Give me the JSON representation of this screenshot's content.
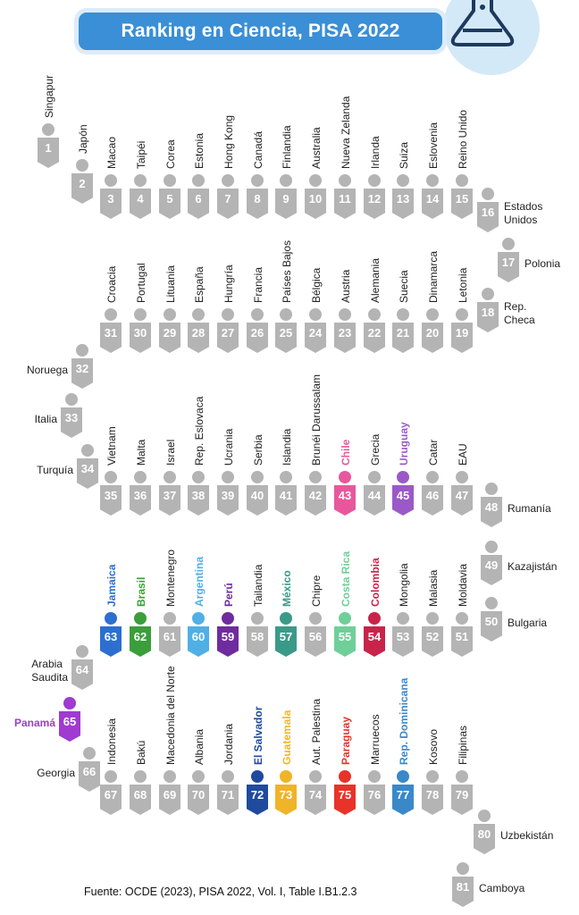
{
  "title": "Ranking en Ciencia, PISA 2022",
  "source": "Fuente: OCDE (2023), PISA 2022, Vol. I, Table I.B1.2.3",
  "colors": {
    "banner": "#3a8fd6",
    "default_figure": "#b4b4b4",
    "highlight": {
      "Chile": "#e8579c",
      "Uruguay": "#9b59c8",
      "Jamaica": "#2c6fd0",
      "Brasil": "#3a9e3a",
      "Argentina": "#4fb0e6",
      "Perú": "#6e2c9e",
      "México": "#3a9a88",
      "Costa Rica": "#6fcf98",
      "Colombia": "#c8244a",
      "Panamá": "#a03ad0",
      "El Salvador": "#1f4a9e",
      "Guatemala": "#f0b429",
      "Paraguay": "#e8332a",
      "Rep. Dominicana": "#3a88c8"
    }
  },
  "chart_data": {
    "type": "table",
    "title": "Ranking en Ciencia, PISA 2022",
    "ranking": [
      {
        "rank": 1,
        "country": "Singapur"
      },
      {
        "rank": 2,
        "country": "Japón"
      },
      {
        "rank": 3,
        "country": "Macao"
      },
      {
        "rank": 4,
        "country": "Taipéi"
      },
      {
        "rank": 5,
        "country": "Corea"
      },
      {
        "rank": 6,
        "country": "Estonia"
      },
      {
        "rank": 7,
        "country": "Hong Kong"
      },
      {
        "rank": 8,
        "country": "Canadá"
      },
      {
        "rank": 9,
        "country": "Finlandia"
      },
      {
        "rank": 10,
        "country": "Australia"
      },
      {
        "rank": 11,
        "country": "Nueva Zelanda"
      },
      {
        "rank": 12,
        "country": "Irlanda"
      },
      {
        "rank": 13,
        "country": "Suiza"
      },
      {
        "rank": 14,
        "country": "Eslovenia"
      },
      {
        "rank": 15,
        "country": "Reino Unido"
      },
      {
        "rank": 16,
        "country": "Estados Unidos"
      },
      {
        "rank": 17,
        "country": "Polonia"
      },
      {
        "rank": 18,
        "country": "Rep. Checa"
      },
      {
        "rank": 19,
        "country": "Letonia"
      },
      {
        "rank": 20,
        "country": "Dinamarca"
      },
      {
        "rank": 21,
        "country": "Suecia"
      },
      {
        "rank": 22,
        "country": "Alemania"
      },
      {
        "rank": 23,
        "country": "Austria"
      },
      {
        "rank": 24,
        "country": "Bélgica"
      },
      {
        "rank": 25,
        "country": "Países Bajos"
      },
      {
        "rank": 26,
        "country": "Francia"
      },
      {
        "rank": 27,
        "country": "Hungría"
      },
      {
        "rank": 28,
        "country": "España"
      },
      {
        "rank": 29,
        "country": "Lituania"
      },
      {
        "rank": 30,
        "country": "Portugal"
      },
      {
        "rank": 31,
        "country": "Croacia"
      },
      {
        "rank": 32,
        "country": "Noruega"
      },
      {
        "rank": 33,
        "country": "Italia"
      },
      {
        "rank": 34,
        "country": "Turquía"
      },
      {
        "rank": 35,
        "country": "Vietnam"
      },
      {
        "rank": 36,
        "country": "Malta"
      },
      {
        "rank": 37,
        "country": "Israel"
      },
      {
        "rank": 38,
        "country": "Rep. Eslovaca"
      },
      {
        "rank": 39,
        "country": "Ucrania"
      },
      {
        "rank": 40,
        "country": "Serbia"
      },
      {
        "rank": 41,
        "country": "Islandia"
      },
      {
        "rank": 42,
        "country": "Brunéi Darussalam"
      },
      {
        "rank": 43,
        "country": "Chile"
      },
      {
        "rank": 44,
        "country": "Grecia"
      },
      {
        "rank": 45,
        "country": "Uruguay"
      },
      {
        "rank": 46,
        "country": "Catar"
      },
      {
        "rank": 47,
        "country": "EAU"
      },
      {
        "rank": 48,
        "country": "Rumanía"
      },
      {
        "rank": 49,
        "country": "Kazajistán"
      },
      {
        "rank": 50,
        "country": "Bulgaria"
      },
      {
        "rank": 51,
        "country": "Moldavia"
      },
      {
        "rank": 52,
        "country": "Malasia"
      },
      {
        "rank": 53,
        "country": "Mongolia"
      },
      {
        "rank": 54,
        "country": "Colombia"
      },
      {
        "rank": 55,
        "country": "Costa Rica"
      },
      {
        "rank": 56,
        "country": "Chipre"
      },
      {
        "rank": 57,
        "country": "México"
      },
      {
        "rank": 58,
        "country": "Tailandia"
      },
      {
        "rank": 59,
        "country": "Perú"
      },
      {
        "rank": 60,
        "country": "Argentina"
      },
      {
        "rank": 61,
        "country": "Montenegro"
      },
      {
        "rank": 62,
        "country": "Brasil"
      },
      {
        "rank": 63,
        "country": "Jamaica"
      },
      {
        "rank": 64,
        "country": "Arabia Saudita"
      },
      {
        "rank": 65,
        "country": "Panamá"
      },
      {
        "rank": 66,
        "country": "Georgia"
      },
      {
        "rank": 67,
        "country": "Indonesia"
      },
      {
        "rank": 68,
        "country": "Bakú"
      },
      {
        "rank": 69,
        "country": "Macedonia del Norte"
      },
      {
        "rank": 70,
        "country": "Albania"
      },
      {
        "rank": 71,
        "country": "Jordania"
      },
      {
        "rank": 72,
        "country": "El Salvador"
      },
      {
        "rank": 73,
        "country": "Guatemala"
      },
      {
        "rank": 74,
        "country": "Aut. Palestina"
      },
      {
        "rank": 75,
        "country": "Paraguay"
      },
      {
        "rank": 76,
        "country": "Marruecos"
      },
      {
        "rank": 77,
        "country": "Rep. Dominicana"
      },
      {
        "rank": 78,
        "country": "Kosovo"
      },
      {
        "rank": 79,
        "country": "Filipinas"
      },
      {
        "rank": 80,
        "country": "Uzbekistán"
      },
      {
        "rank": 81,
        "country": "Camboya"
      }
    ]
  }
}
